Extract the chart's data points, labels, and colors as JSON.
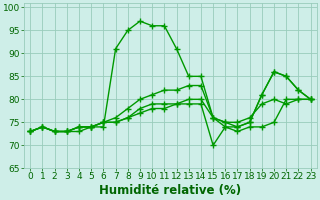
{
  "xlabel": "Humidité relative (%)",
  "xlim": [
    -0.5,
    23.5
  ],
  "ylim": [
    65,
    101
  ],
  "xticks": [
    0,
    1,
    2,
    3,
    4,
    5,
    6,
    7,
    8,
    9,
    10,
    11,
    12,
    13,
    14,
    15,
    16,
    17,
    18,
    19,
    20,
    21,
    22,
    23
  ],
  "yticks": [
    65,
    70,
    75,
    80,
    85,
    90,
    95,
    100
  ],
  "background_color": "#ceeee8",
  "grid_color": "#99ccbb",
  "line_color": "#009900",
  "series": [
    [
      73,
      74,
      73,
      73,
      73,
      74,
      74,
      91,
      95,
      97,
      96,
      96,
      91,
      85,
      85,
      76,
      74,
      73,
      74,
      74,
      75,
      80,
      80,
      80
    ],
    [
      73,
      74,
      73,
      73,
      74,
      74,
      75,
      76,
      78,
      80,
      81,
      82,
      82,
      83,
      83,
      76,
      75,
      74,
      75,
      81,
      86,
      85,
      82,
      80
    ],
    [
      73,
      74,
      73,
      73,
      74,
      74,
      75,
      75,
      76,
      77,
      78,
      78,
      79,
      79,
      79,
      70,
      74,
      74,
      75,
      81,
      86,
      85,
      82,
      80
    ],
    [
      73,
      74,
      73,
      73,
      74,
      74,
      75,
      75,
      76,
      78,
      79,
      79,
      79,
      80,
      80,
      76,
      75,
      75,
      76,
      79,
      80,
      79,
      80,
      80
    ]
  ],
  "marker": "+",
  "marker_size": 4,
  "line_width": 1.0,
  "font_color": "#006600",
  "tick_fontsize": 6.5,
  "xlabel_fontsize": 8.5
}
